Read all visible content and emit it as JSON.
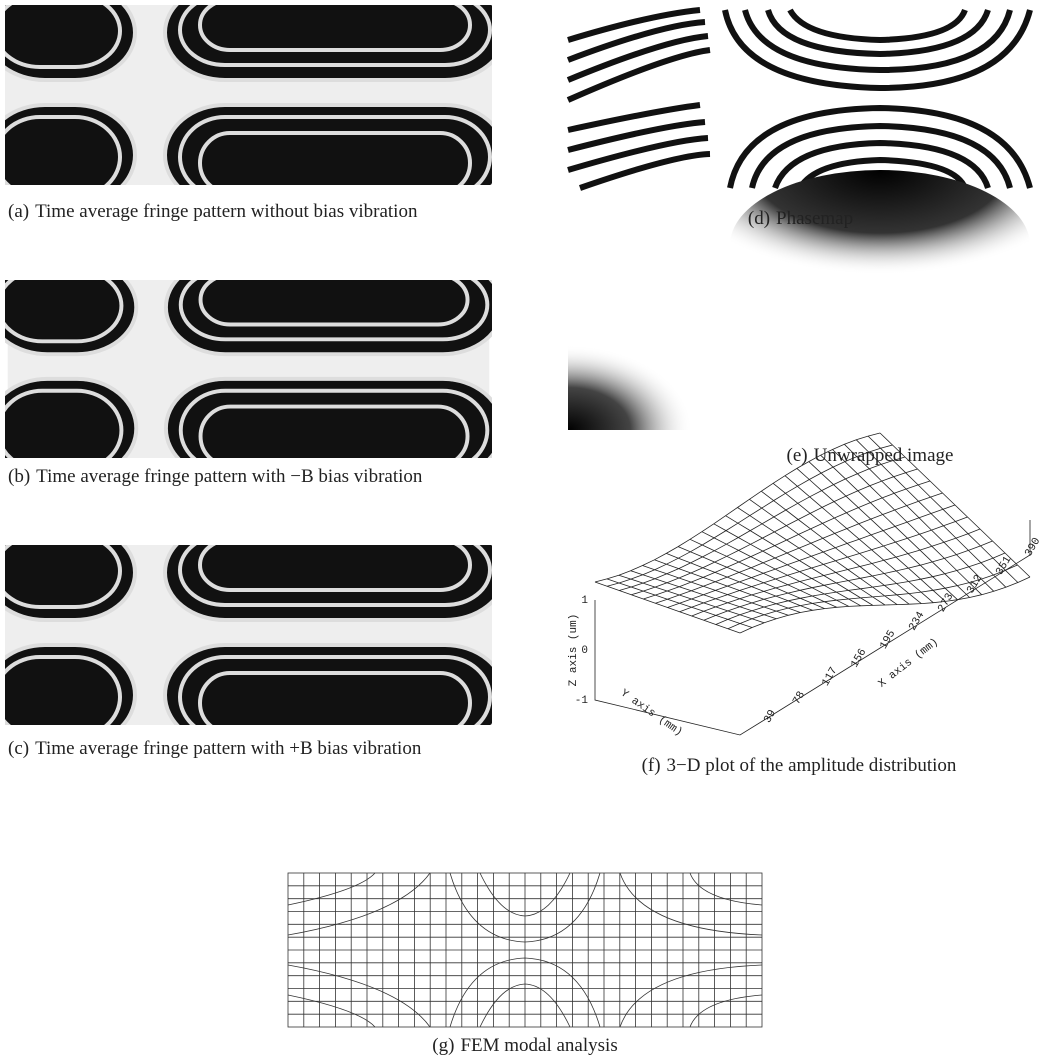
{
  "panels": [
    {
      "label": "(a)",
      "caption": "Time average fringe pattern without bias vibration"
    },
    {
      "label": "(b)",
      "caption": "Time average fringe pattern with −B bias vibration"
    },
    {
      "label": "(c)",
      "caption": "Time average fringe pattern with +B bias vibration"
    },
    {
      "label": "(d)",
      "caption": "Phasemap"
    },
    {
      "label": "(e)",
      "caption": "Unwrapped image"
    },
    {
      "label": "(f)",
      "caption": "3−D plot of the amplitude distribution"
    },
    {
      "label": "(g)",
      "caption": "FEM modal analysis"
    }
  ],
  "plot": {
    "z_axis_label": "Z axis (um)",
    "y_axis_label": "Y axis (mm)",
    "x_axis_label": "X axis (mm)",
    "z_ticks": [
      "1",
      "0",
      "-1"
    ],
    "x_ticks": [
      "39",
      "78",
      "117",
      "156",
      "195",
      "234",
      "273",
      "312",
      "351",
      "390"
    ]
  }
}
